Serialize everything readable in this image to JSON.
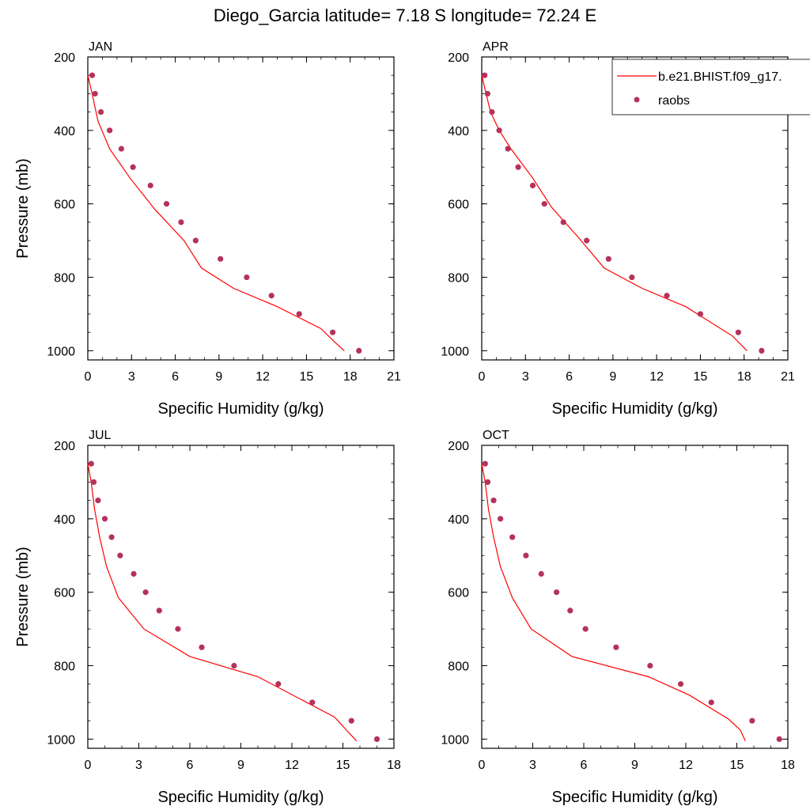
{
  "figure": {
    "title": "Diego_Garcia  latitude= 7.18 S longitude= 72.24 E",
    "line_color": "#ff0000",
    "marker_color": "#b5325a"
  },
  "legend": {
    "model_label": "b.e21.BHIST.f09_g17.",
    "obs_label": "raobs",
    "placement": "top-right, overlapping APR panel"
  },
  "chart_data": [
    {
      "type": "line",
      "panel": "JAN",
      "title": "JAN",
      "xlabel": "Specific Humidity (g/kg)",
      "ylabel": "Pressure (mb)",
      "xlim": [
        0,
        21
      ],
      "ylim": [
        1025,
        200
      ],
      "xticks": [
        0,
        3,
        6,
        9,
        12,
        15,
        18,
        21
      ],
      "yticks": [
        200,
        400,
        600,
        800,
        1000
      ],
      "series": [
        {
          "name": "b.e21.BHIST.f09_g17.",
          "kind": "line",
          "x": [
            0.0,
            0.3,
            0.7,
            1.5,
            2.9,
            4.6,
            6.6,
            7.8,
            10.0,
            13.0,
            16.0,
            16.9,
            17.6
          ],
          "y": [
            250,
            300,
            375,
            450,
            530,
            615,
            700,
            775,
            830,
            880,
            940,
            975,
            1000
          ]
        },
        {
          "name": "raobs",
          "kind": "scatter",
          "x": [
            0.3,
            0.5,
            0.9,
            1.5,
            2.3,
            3.1,
            4.3,
            5.4,
            6.4,
            7.4,
            9.1,
            10.9,
            12.6,
            14.5,
            16.8,
            18.6
          ],
          "y": [
            250,
            300,
            350,
            400,
            450,
            500,
            550,
            600,
            650,
            700,
            750,
            800,
            850,
            900,
            950,
            1000
          ]
        }
      ]
    },
    {
      "type": "line",
      "panel": "APR",
      "title": "APR",
      "xlabel": "Specific Humidity (g/kg)",
      "ylabel": "",
      "xlim": [
        0,
        21
      ],
      "ylim": [
        1025,
        200
      ],
      "xticks": [
        0,
        3,
        6,
        9,
        12,
        15,
        18,
        21
      ],
      "yticks": [
        200,
        400,
        600,
        800,
        1000
      ],
      "series": [
        {
          "name": "b.e21.BHIST.f09_g17.",
          "kind": "line",
          "x": [
            0.0,
            0.3,
            0.6,
            1.2,
            2.0,
            3.5,
            4.8,
            6.6,
            8.4,
            11.0,
            14.0,
            17.2,
            18.2
          ],
          "y": [
            250,
            300,
            350,
            400,
            450,
            530,
            610,
            690,
            775,
            830,
            880,
            960,
            1000
          ]
        },
        {
          "name": "raobs",
          "kind": "scatter",
          "x": [
            0.2,
            0.4,
            0.7,
            1.2,
            1.8,
            2.5,
            3.5,
            4.3,
            5.6,
            7.2,
            8.7,
            10.3,
            12.7,
            15.0,
            17.6,
            19.2
          ],
          "y": [
            250,
            300,
            350,
            400,
            450,
            500,
            550,
            600,
            650,
            700,
            750,
            800,
            850,
            900,
            950,
            1000
          ]
        }
      ]
    },
    {
      "type": "line",
      "panel": "JUL",
      "title": "JUL",
      "xlabel": "Specific Humidity (g/kg)",
      "ylabel": "Pressure (mb)",
      "xlim": [
        0,
        18
      ],
      "ylim": [
        1025,
        200
      ],
      "xticks": [
        0,
        3,
        6,
        9,
        12,
        15,
        18
      ],
      "yticks": [
        200,
        400,
        600,
        800,
        1000
      ],
      "series": [
        {
          "name": "b.e21.BHIST.f09_g17.",
          "kind": "line",
          "x": [
            0.0,
            0.2,
            0.4,
            0.7,
            1.1,
            1.8,
            3.3,
            6.0,
            10.0,
            14.5,
            15.3,
            15.8
          ],
          "y": [
            250,
            300,
            375,
            450,
            530,
            615,
            700,
            775,
            830,
            940,
            980,
            1005
          ]
        },
        {
          "name": "raobs",
          "kind": "scatter",
          "x": [
            0.2,
            0.35,
            0.6,
            1.0,
            1.4,
            1.9,
            2.7,
            3.4,
            4.2,
            5.3,
            6.7,
            8.6,
            11.2,
            13.2,
            15.5,
            17.0
          ],
          "y": [
            250,
            300,
            350,
            400,
            450,
            500,
            550,
            600,
            650,
            700,
            750,
            800,
            850,
            900,
            950,
            1000
          ]
        }
      ]
    },
    {
      "type": "line",
      "panel": "OCT",
      "title": "OCT",
      "xlabel": "Specific Humidity (g/kg)",
      "ylabel": "",
      "xlim": [
        0,
        18
      ],
      "ylim": [
        1025,
        200
      ],
      "xticks": [
        0,
        3,
        6,
        9,
        12,
        15,
        18
      ],
      "yticks": [
        200,
        400,
        600,
        800,
        1000
      ],
      "series": [
        {
          "name": "b.e21.BHIST.f09_g17.",
          "kind": "line",
          "x": [
            0.0,
            0.2,
            0.4,
            0.7,
            1.1,
            1.8,
            2.9,
            5.3,
            9.8,
            12.2,
            14.5,
            15.2,
            15.5
          ],
          "y": [
            250,
            300,
            375,
            450,
            530,
            615,
            700,
            775,
            830,
            880,
            945,
            975,
            1005
          ]
        },
        {
          "name": "raobs",
          "kind": "scatter",
          "x": [
            0.2,
            0.35,
            0.7,
            1.1,
            1.8,
            2.6,
            3.5,
            4.4,
            5.2,
            6.1,
            7.9,
            9.9,
            11.7,
            13.5,
            15.9,
            17.5
          ],
          "y": [
            250,
            300,
            350,
            400,
            450,
            500,
            550,
            600,
            650,
            700,
            750,
            800,
            850,
            900,
            950,
            1000
          ]
        }
      ]
    }
  ]
}
